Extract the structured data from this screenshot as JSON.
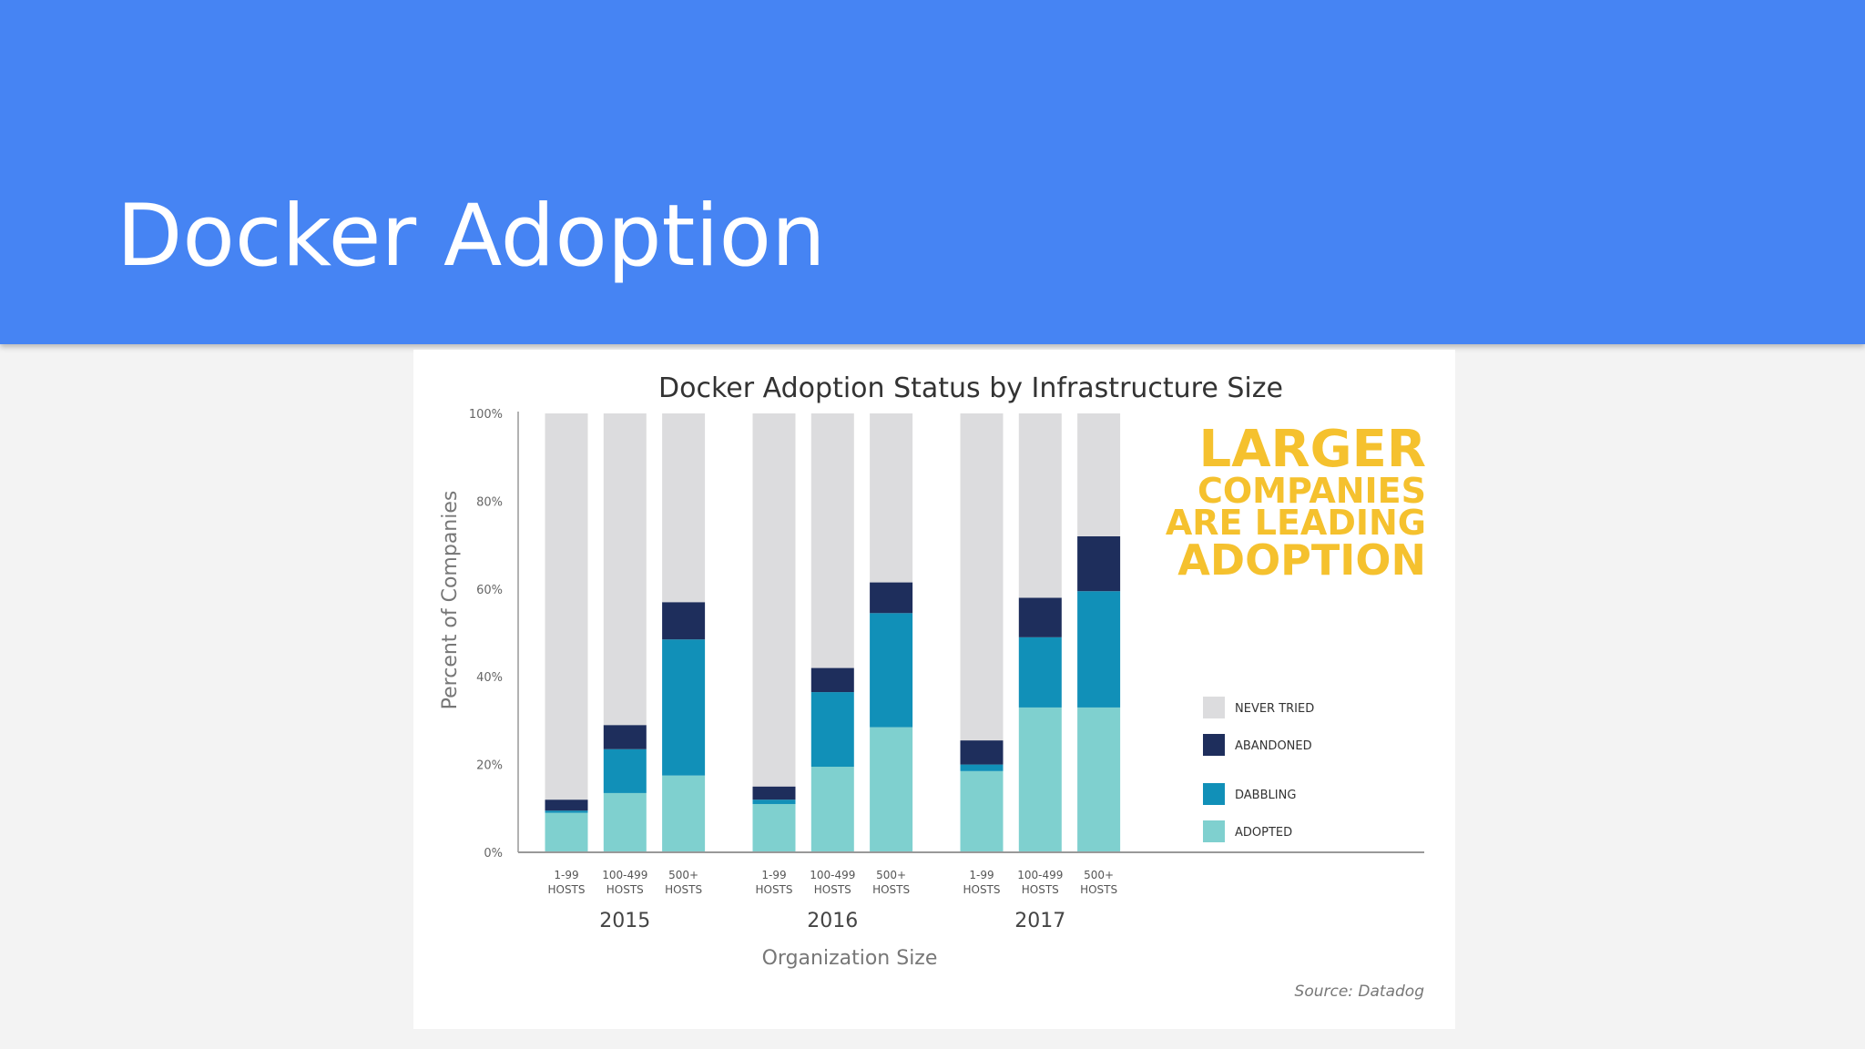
{
  "slide": {
    "title": "Docker Adoption",
    "header_color": "#4684f3"
  },
  "chart_data": {
    "type": "bar",
    "stacked": true,
    "normalized": true,
    "title": "Docker Adoption Status by Infrastructure Size",
    "xlabel": "Organization Size",
    "ylabel": "Percent of Companies",
    "ylim": [
      0,
      100
    ],
    "yticks": [
      "0%",
      "20%",
      "40%",
      "60%",
      "80%",
      "100%"
    ],
    "grid": false,
    "legend_position": "right",
    "callout": [
      "LARGER",
      "COMPANIES",
      "ARE LEADING",
      "ADOPTION"
    ],
    "source": "Source: Datadog",
    "groups": [
      {
        "label": "2015",
        "categories": [
          [
            "1-99",
            "HOSTS"
          ],
          [
            "100-499",
            "HOSTS"
          ],
          [
            "500+",
            "HOSTS"
          ]
        ],
        "series": [
          {
            "name": "ADOPTED",
            "values": [
              9,
              13.5,
              17.5
            ]
          },
          {
            "name": "DABBLING",
            "values": [
              0.5,
              10,
              31
            ]
          },
          {
            "name": "ABANDONED",
            "values": [
              2.5,
              5.5,
              8.5
            ]
          },
          {
            "name": "NEVER TRIED",
            "values": [
              88,
              71,
              43
            ]
          }
        ]
      },
      {
        "label": "2016",
        "categories": [
          [
            "1-99",
            "HOSTS"
          ],
          [
            "100-499",
            "HOSTS"
          ],
          [
            "500+",
            "HOSTS"
          ]
        ],
        "series": [
          {
            "name": "ADOPTED",
            "values": [
              11,
              19.5,
              28.5
            ]
          },
          {
            "name": "DABBLING",
            "values": [
              1,
              17,
              26
            ]
          },
          {
            "name": "ABANDONED",
            "values": [
              3,
              5.5,
              7
            ]
          },
          {
            "name": "NEVER TRIED",
            "values": [
              85,
              58,
              38.5
            ]
          }
        ]
      },
      {
        "label": "2017",
        "categories": [
          [
            "1-99",
            "HOSTS"
          ],
          [
            "100-499",
            "HOSTS"
          ],
          [
            "500+",
            "HOSTS"
          ]
        ],
        "series": [
          {
            "name": "ADOPTED",
            "values": [
              18.5,
              33,
              33
            ]
          },
          {
            "name": "DABBLING",
            "values": [
              1.5,
              16,
              26.5
            ]
          },
          {
            "name": "ABANDONED",
            "values": [
              5.5,
              9,
              12.5
            ]
          },
          {
            "name": "NEVER TRIED",
            "values": [
              74.5,
              42,
              28
            ]
          }
        ]
      }
    ],
    "legend": [
      "NEVER TRIED",
      "ABANDONED",
      "DABBLING",
      "ADOPTED"
    ],
    "colors": {
      "NEVER TRIED": "#dcdcde",
      "ABANDONED": "#1e2e5c",
      "DABBLING": "#1190b8",
      "ADOPTED": "#7fd0cf",
      "callout": "#f5c12e"
    }
  }
}
